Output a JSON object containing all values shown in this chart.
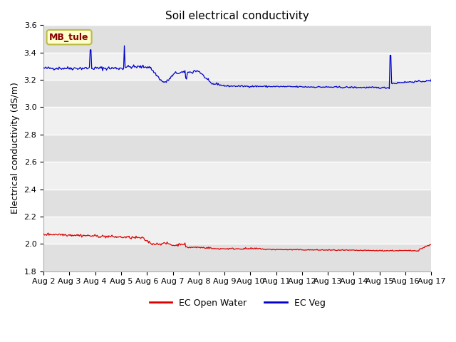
{
  "title": "Soil electrical conductivity",
  "ylabel": "Electrical conductivity (dS/m)",
  "ylim": [
    1.8,
    3.6
  ],
  "yticks": [
    1.8,
    2.0,
    2.2,
    2.4,
    2.6,
    2.8,
    3.0,
    3.2,
    3.4,
    3.6
  ],
  "xlabels": [
    "Aug 2",
    "Aug 3",
    "Aug 4",
    "Aug 5",
    "Aug 6",
    "Aug 7",
    "Aug 8",
    "Aug 9",
    "Aug 10",
    "Aug 11",
    "Aug 12",
    "Aug 13",
    "Aug 14",
    "Aug 15",
    "Aug 16",
    "Aug 17"
  ],
  "annotation": "MB_tule",
  "annotation_bg": "#ffffcc",
  "annotation_border": "#bbbb44",
  "annotation_text_color": "#880000",
  "ec_open_water_color": "#dd0000",
  "ec_veg_color": "#0000cc",
  "legend_ec_open_water": "EC Open Water",
  "legend_ec_veg": "EC Veg",
  "fig_bg_color": "#ffffff",
  "plot_bg_light": "#f0f0f0",
  "plot_bg_dark": "#e0e0e0",
  "grid_color": "#ffffff",
  "n_points": 500,
  "title_fontsize": 11,
  "axis_fontsize": 9,
  "tick_fontsize": 8
}
